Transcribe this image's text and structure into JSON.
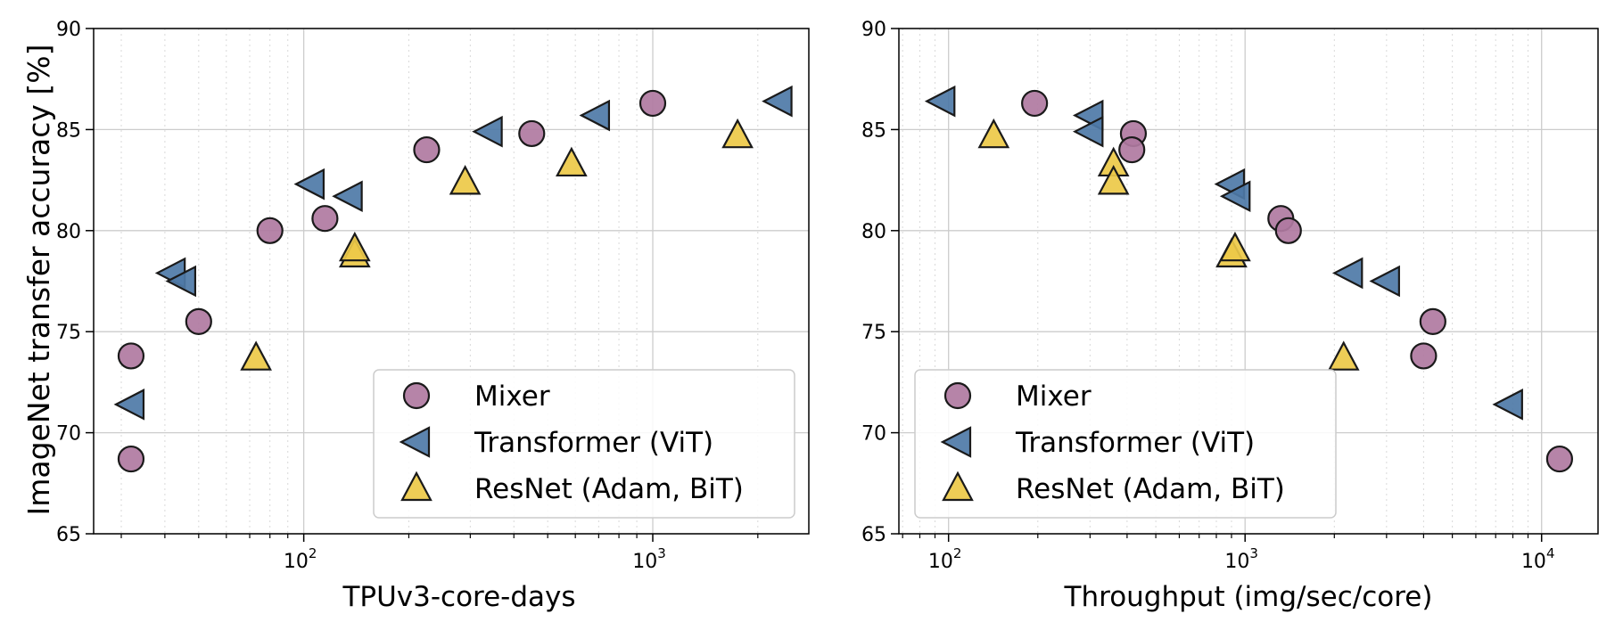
{
  "ylabel": "ImageNet transfer accuracy [%]",
  "colors": {
    "mixer": "#b07aa1",
    "transformer": "#4e79a7",
    "resnet": "#edc948"
  },
  "chart_data": [
    {
      "type": "scatter",
      "xscale": "log",
      "xlabel": "TPUv3-core-days",
      "ylabel": "ImageNet transfer accuracy [%]",
      "xlim": [
        25,
        2800
      ],
      "ylim": [
        65,
        90
      ],
      "xticks": [
        {
          "value": 100,
          "base": "10",
          "exp": "2"
        },
        {
          "value": 1000,
          "base": "10",
          "exp": "3"
        }
      ],
      "yticks": [
        65,
        70,
        75,
        80,
        85,
        90
      ],
      "grid": true,
      "legend": "bottom-right",
      "series": [
        {
          "name": "Mixer",
          "marker": "circle",
          "points": [
            [
              32,
              68.7
            ],
            [
              32,
              73.8
            ],
            [
              50,
              75.5
            ],
            [
              80,
              80.0
            ],
            [
              115,
              80.6
            ],
            [
              225,
              84.0
            ],
            [
              450,
              84.8
            ],
            [
              1000,
              86.3
            ]
          ]
        },
        {
          "name": "Transformer (ViT)",
          "marker": "triangle-left",
          "points": [
            [
              32,
              71.4
            ],
            [
              42,
              77.9
            ],
            [
              45,
              77.5
            ],
            [
              105,
              82.3
            ],
            [
              135,
              81.7
            ],
            [
              340,
              84.9
            ],
            [
              690,
              85.7
            ],
            [
              2300,
              86.4
            ]
          ]
        },
        {
          "name": "ResNet (Adam, BiT)",
          "marker": "triangle-up",
          "points": [
            [
              73,
              73.7
            ],
            [
              140,
              78.8
            ],
            [
              140,
              79.1
            ],
            [
              290,
              82.4
            ],
            [
              585,
              83.3
            ],
            [
              1750,
              84.7
            ]
          ]
        }
      ]
    },
    {
      "type": "scatter",
      "xscale": "log",
      "xlabel": "Throughput (img/sec/core)",
      "ylabel": "",
      "xlim": [
        68,
        15500
      ],
      "ylim": [
        65,
        90
      ],
      "xticks": [
        {
          "value": 100,
          "base": "10",
          "exp": "2"
        },
        {
          "value": 1000,
          "base": "10",
          "exp": "3"
        },
        {
          "value": 10000,
          "base": "10",
          "exp": "4"
        }
      ],
      "yticks": [
        65,
        70,
        75,
        80,
        85,
        90
      ],
      "grid": true,
      "legend": "bottom-left",
      "series": [
        {
          "name": "Mixer",
          "marker": "circle",
          "points": [
            [
              195,
              86.3
            ],
            [
              420,
              84.8
            ],
            [
              415,
              84.0
            ],
            [
              1320,
              80.6
            ],
            [
              1400,
              80.0
            ],
            [
              4300,
              75.5
            ],
            [
              4000,
              73.8
            ],
            [
              11500,
              68.7
            ]
          ]
        },
        {
          "name": "Transformer (ViT)",
          "marker": "triangle-left",
          "points": [
            [
              95,
              86.4
            ],
            [
              300,
              85.7
            ],
            [
              300,
              84.9
            ],
            [
              900,
              82.3
            ],
            [
              940,
              81.7
            ],
            [
              2250,
              77.9
            ],
            [
              3000,
              77.5
            ],
            [
              7800,
              71.4
            ]
          ]
        },
        {
          "name": "ResNet (Adam, BiT)",
          "marker": "triangle-up",
          "points": [
            [
              142,
              84.7
            ],
            [
              360,
              83.3
            ],
            [
              360,
              82.4
            ],
            [
              900,
              78.8
            ],
            [
              925,
              79.1
            ],
            [
              2150,
              73.7
            ]
          ]
        }
      ]
    }
  ]
}
